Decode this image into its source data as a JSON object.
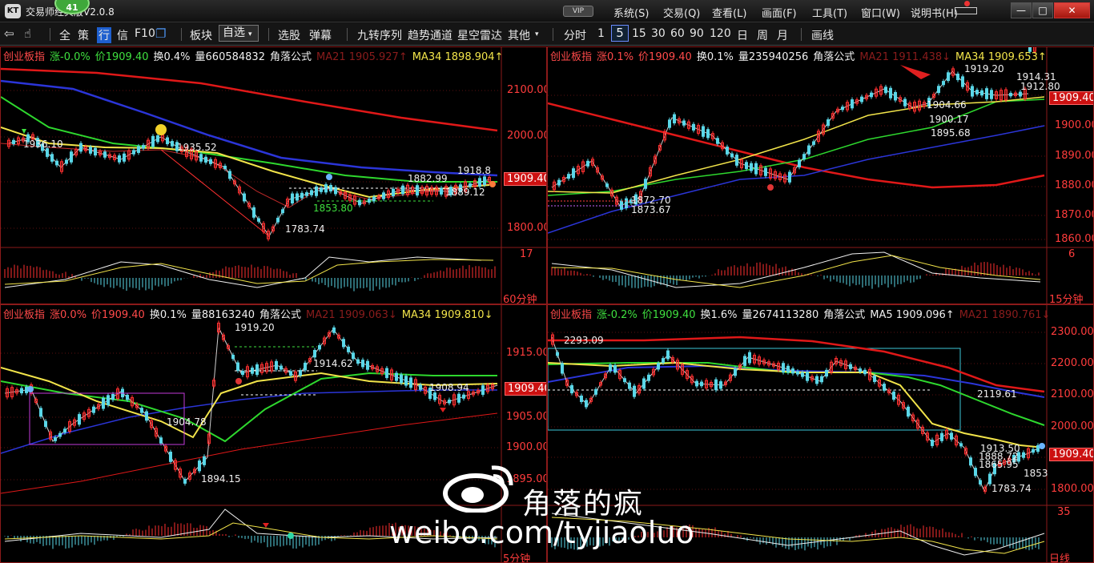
{
  "app": {
    "logo": "KT",
    "title": "交易师经典版V2.0.8",
    "notification_count": "41",
    "vip": "VIP"
  },
  "menu": [
    "系统(S)",
    "交易(Q)",
    "查看(L)",
    "画面(F)",
    "工具(T)",
    "窗口(W)",
    "说明书(H)"
  ],
  "window_controls": {
    "minimize": "—",
    "maximize": "□",
    "close": "✕"
  },
  "toolbar": {
    "back_icon": "back-arrow-icon",
    "hand_icon": "hand-cursor-icon",
    "items_left": [
      "全",
      "策",
      "行",
      "信",
      "F10"
    ],
    "board": "板块",
    "watchlist": "自选",
    "select_stock": "选股",
    "popup": "弹幕",
    "tools": [
      "九转序列",
      "趋势通道",
      "星空雷达",
      "其他"
    ],
    "periods": [
      "分时",
      "1",
      "5",
      "15",
      "30",
      "60",
      "90",
      "120",
      "日",
      "周",
      "月"
    ],
    "active_period": "5",
    "draw_line": "画线"
  },
  "panels": [
    {
      "id": "p60",
      "header": {
        "name": "创业板指",
        "change": "涨-0.0%",
        "price": "价1909.40",
        "turnover": "换0.4%",
        "volume": "量660584832",
        "formula": "角落公式",
        "ma_a": "MA21  1905.927↑",
        "ma_b": "MA34  1898.904↑"
      },
      "axis": [
        "2100.00",
        "2000.00",
        "1900.00",
        "1800.00"
      ],
      "price_tag": "1909.40",
      "labels": [
        "1783.74",
        "1853.80",
        "1889.12",
        "1882.99",
        "1918.8",
        "1935.52",
        "1936.10"
      ],
      "sub_value": "17",
      "period": "60分钟"
    },
    {
      "id": "p15",
      "header": {
        "name": "创业板指",
        "change": "涨0.1%",
        "price": "价1909.40",
        "turnover": "换0.1%",
        "volume": "量235940256",
        "formula": "角落公式",
        "ma_a": "MA21  1911.438↓",
        "ma_b": "MA34  1909.653↑"
      },
      "axis": [
        "1910.00",
        "1900.00",
        "1890.00",
        "1880.00",
        "1870.00",
        "1860.00"
      ],
      "price_tag": "1909.40",
      "labels": [
        "1919.20",
        "1904.66",
        "1900.17",
        "1895.68",
        "1873.67",
        "1872.70",
        "1914.31",
        "1912.80"
      ],
      "sub_value": "6",
      "period": "15分钟"
    },
    {
      "id": "p5",
      "header": {
        "name": "创业板指",
        "change": "涨0.0%",
        "price": "价1909.40",
        "turnover": "换0.1%",
        "volume": "量88163240",
        "formula": "角落公式",
        "ma_a": "MA21  1909.063↓",
        "ma_b": "MA34  1909.810↓"
      },
      "axis": [
        "1915.00",
        "1910.00",
        "1905.00",
        "1900.00",
        "1895.00"
      ],
      "price_tag": "1909.40",
      "labels": [
        "1919.20",
        "1894.15",
        "1904.78",
        "1914.62",
        "1908.94"
      ],
      "sub_value": "",
      "period": "5分钟"
    },
    {
      "id": "pday",
      "header": {
        "name": "创业板指",
        "change": "涨-0.2%",
        "price": "价1909.40",
        "turnover": "换1.6%",
        "volume": "量2674113280",
        "formula": "角落公式",
        "ma_a": "MA5  1909.096↑",
        "ma_b": "MA21  1890.761↓"
      },
      "axis": [
        "2300.00",
        "2200.00",
        "2100.00",
        "2000.00",
        "1900.00",
        "1800.00"
      ],
      "price_tag": "1909.40",
      "labels": [
        "2293.09",
        "2119.61",
        "1783.74",
        "1913.50",
        "1888.72",
        "1865.95",
        "1853"
      ],
      "sub_value": "35",
      "period": "日线"
    }
  ],
  "watermark": {
    "name": "角落的疯",
    "url": "weibo.com/tyjiaoluo"
  }
}
